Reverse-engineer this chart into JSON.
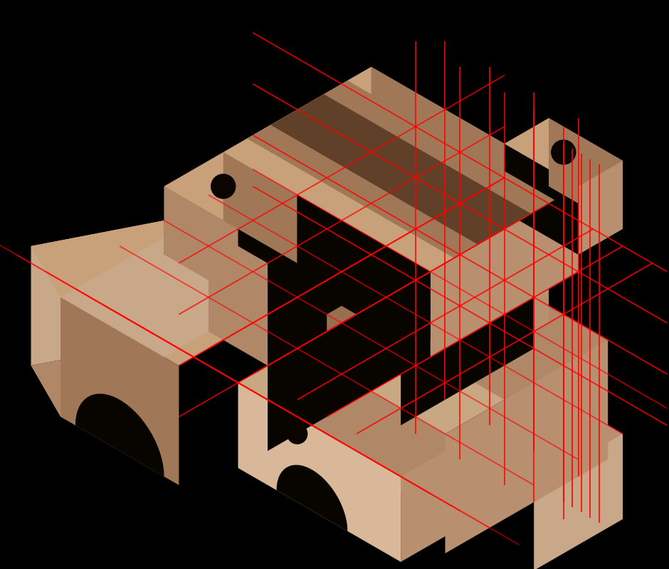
{
  "bg_color": "#000000",
  "colors": {
    "top_face": "#c8a07a",
    "top_face_dark": "#a07858",
    "top_face_stripe": "#b08868",
    "right_face": "#b89070",
    "right_face_light": "#c8a888",
    "left_face": "#987050",
    "left_face_dark": "#785038",
    "shadow": "#080400",
    "hole": "#0a0500",
    "highlight": "#d8b898",
    "mid_dark": "#604028",
    "front_face": "#b08868",
    "front_face_light": "#c8a882"
  },
  "red": "#ff0000",
  "red_alpha": 0.9,
  "red_lw": 1.3
}
